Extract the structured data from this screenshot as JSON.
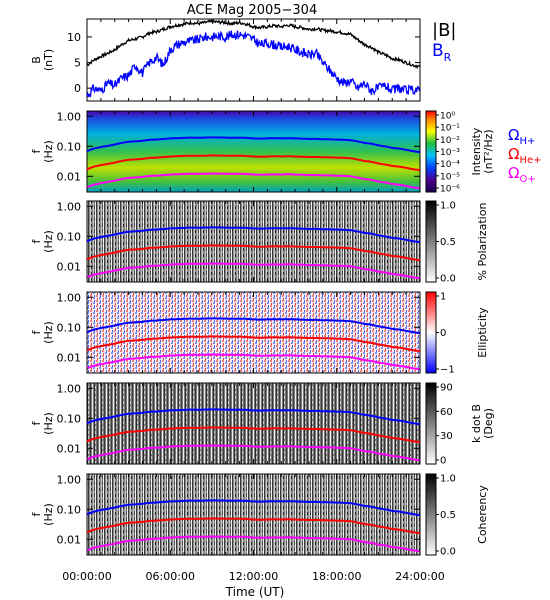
{
  "figure": {
    "title": "ACE Mag 2005−304",
    "time_label": "Time (UT)",
    "time_ticks": [
      "00:00:00",
      "06:00:00",
      "12:00:00",
      "18:00:00",
      "24:00:00"
    ]
  },
  "chart_data": [
    {
      "type": "line",
      "panel": "magnetic-field",
      "ylabel_main": "B",
      "ylabel_unit": "(nT)",
      "ylim": [
        -2.5,
        13.5
      ],
      "y_ticks": [
        0,
        5,
        10
      ],
      "x_range_hours": [
        0,
        24
      ],
      "series": [
        {
          "name": "|B|",
          "color": "#000000",
          "x": [
            0,
            0.5,
            1,
            1.5,
            2,
            2.5,
            3,
            3.5,
            4,
            4.5,
            5,
            5.5,
            6,
            6.5,
            7,
            7.5,
            8,
            8.5,
            9,
            9.5,
            10,
            10.5,
            11,
            11.5,
            12,
            12.5,
            13,
            13.5,
            14,
            14.5,
            15,
            15.5,
            16,
            16.5,
            17,
            17.5,
            18,
            18.5,
            19,
            19.5,
            20,
            20.5,
            21,
            21.5,
            22,
            22.5,
            23,
            23.5,
            24
          ],
          "values": [
            4.5,
            5.5,
            6.2,
            6.8,
            7.5,
            8.5,
            9.3,
            9.6,
            10.0,
            10.8,
            11.0,
            11.5,
            12.0,
            12.3,
            12.5,
            12.8,
            12.6,
            12.8,
            13.0,
            12.9,
            12.8,
            12.6,
            12.8,
            12.5,
            12.0,
            11.8,
            12.0,
            12.2,
            12.0,
            12.3,
            12.0,
            11.8,
            11.5,
            11.6,
            11.3,
            11.2,
            11.0,
            10.8,
            10.5,
            9.5,
            8.5,
            8.0,
            7.0,
            6.5,
            5.8,
            5.5,
            5.0,
            4.5,
            4.2
          ]
        },
        {
          "name": "B",
          "subscript": "R",
          "color": "#0000ff",
          "x": [
            0,
            0.5,
            1,
            1.5,
            2,
            2.5,
            3,
            3.5,
            4,
            4.5,
            5,
            5.5,
            6,
            6.5,
            7,
            7.5,
            8,
            8.5,
            9,
            9.5,
            10,
            10.5,
            11,
            11.5,
            12,
            12.5,
            13,
            13.5,
            14,
            14.5,
            15,
            15.5,
            16,
            16.5,
            17,
            17.5,
            18,
            18.5,
            19,
            19.5,
            20,
            20.5,
            21,
            21.5,
            22,
            22.5,
            23,
            23.5,
            24
          ],
          "values": [
            -1.5,
            0.0,
            -0.5,
            1.0,
            0.5,
            2.0,
            2.5,
            4.5,
            3.0,
            5.0,
            6.0,
            4.5,
            7.5,
            8.5,
            9.0,
            9.2,
            9.5,
            10.0,
            10.0,
            10.2,
            10.0,
            10.5,
            10.5,
            10.2,
            9.5,
            8.5,
            8.8,
            8.5,
            8.0,
            8.2,
            7.5,
            7.0,
            6.5,
            6.8,
            5.0,
            3.5,
            2.0,
            1.0,
            1.5,
            0.0,
            1.0,
            -0.5,
            0.0,
            0.5,
            -0.5,
            0.0,
            -0.5,
            -0.3,
            -0.5
          ]
        }
      ]
    },
    {
      "type": "heatmap",
      "panel": "intensity",
      "ylabel_main": "f",
      "ylabel_unit": "(Hz)",
      "y_scale": "log",
      "ylim": [
        0.003,
        1.5
      ],
      "y_ticks": [
        "1.00",
        "0.10",
        "0.01"
      ],
      "colorbar": {
        "label": "Intensity",
        "unit": "(nT²/Hz)",
        "scale": "log",
        "tick_labels": [
          "10⁰",
          "10⁻¹",
          "10⁻²",
          "10⁻³",
          "10⁻⁴",
          "10⁻⁵",
          "10⁻⁶"
        ]
      }
    },
    {
      "type": "heatmap",
      "panel": "polarization",
      "ylabel_main": "f",
      "ylabel_unit": "(Hz)",
      "y_scale": "log",
      "ylim": [
        0.003,
        1.5
      ],
      "y_ticks": [
        "1.00",
        "0.10",
        "0.01"
      ],
      "colorbar": {
        "label": "% Polarization",
        "unit": "",
        "tick_labels": [
          "1.0",
          "0.5",
          "0.0"
        ]
      }
    },
    {
      "type": "heatmap",
      "panel": "ellipticity",
      "ylabel_main": "f",
      "ylabel_unit": "(Hz)",
      "y_scale": "log",
      "ylim": [
        0.003,
        1.5
      ],
      "y_ticks": [
        "1.00",
        "0.10",
        "0.01"
      ],
      "colorbar": {
        "label": "Ellipticity",
        "unit": "",
        "tick_labels": [
          "1",
          "0",
          "−1"
        ]
      }
    },
    {
      "type": "heatmap",
      "panel": "k-dot-b",
      "ylabel_main": "f",
      "ylabel_unit": "(Hz)",
      "y_scale": "log",
      "ylim": [
        0.003,
        1.5
      ],
      "y_ticks": [
        "1.00",
        "0.10",
        "0.01"
      ],
      "colorbar": {
        "label": "k dot B",
        "unit": "(Deg)",
        "tick_labels": [
          "90",
          "60",
          "30",
          "0"
        ]
      }
    },
    {
      "type": "heatmap",
      "panel": "coherency",
      "ylabel_main": "f",
      "ylabel_unit": "(Hz)",
      "y_scale": "log",
      "ylim": [
        0.003,
        1.5
      ],
      "y_ticks": [
        "1.00",
        "0.10",
        "0.01"
      ],
      "colorbar": {
        "label": "Coherency",
        "unit": "",
        "tick_labels": [
          "1.0",
          "0.5",
          "0.0"
        ]
      }
    }
  ],
  "gyrofrequency": {
    "legend": [
      {
        "symbol": "Ω",
        "subscript": "H+",
        "color": "#0000ff"
      },
      {
        "symbol": "Ω",
        "subscript": "He+",
        "color": "#ff0000"
      },
      {
        "symbol": "Ω",
        "subscript": "O+",
        "color": "#ff00ff"
      }
    ],
    "lines": [
      {
        "name": "H+",
        "color": "#0000ff",
        "mass": 1
      },
      {
        "name": "He+",
        "color": "#ff0000",
        "mass": 4
      },
      {
        "name": "O+",
        "color": "#ff00ff",
        "mass": 16
      }
    ]
  }
}
